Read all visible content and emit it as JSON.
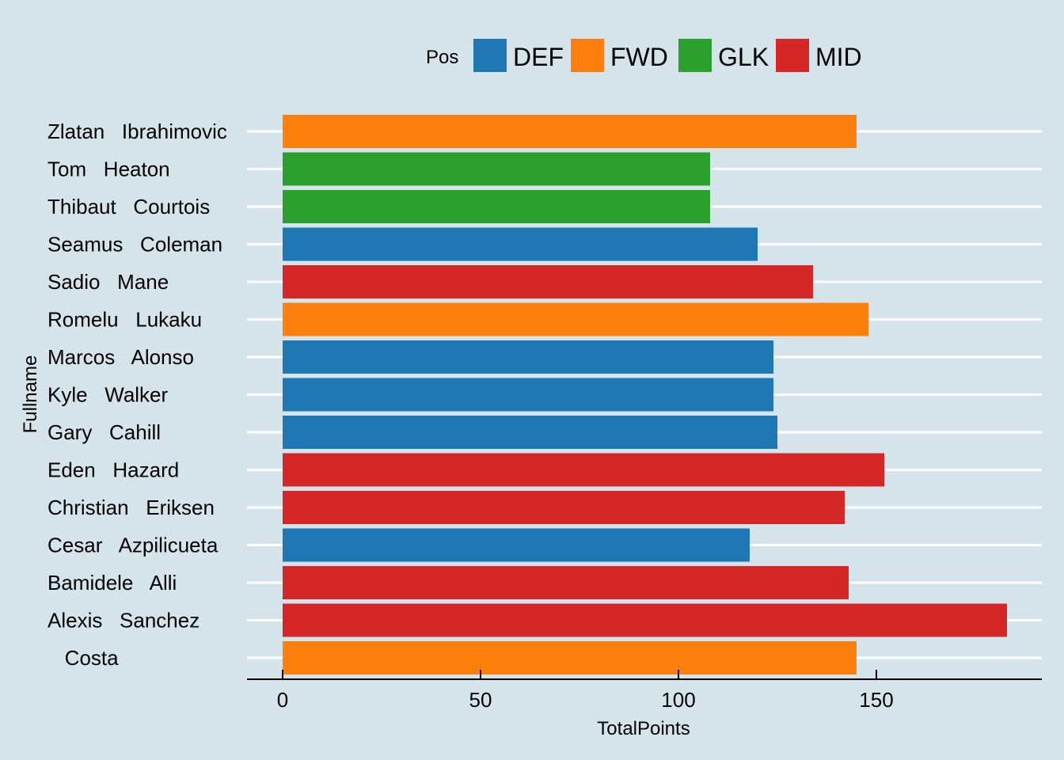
{
  "chart_data": {
    "type": "bar",
    "orientation": "horizontal",
    "xlabel": "TotalPoints",
    "ylabel": "Fullname",
    "xlim": [
      0,
      190
    ],
    "xticks": [
      0,
      50,
      100,
      150
    ],
    "grid": "horizontal major lines",
    "legend": {
      "title": "Pos",
      "placement": "top",
      "entries": [
        {
          "name": "DEF",
          "color": "#1f77b4"
        },
        {
          "name": "FWD",
          "color": "#ff7f0e"
        },
        {
          "name": "GLK",
          "color": "#2ca02c"
        },
        {
          "name": "MID",
          "color": "#d62728"
        }
      ]
    },
    "bars": [
      {
        "label": "Zlatan   Ibrahimovic",
        "pos": "FWD",
        "value": 145
      },
      {
        "label": "Tom   Heaton",
        "pos": "GLK",
        "value": 108
      },
      {
        "label": "Thibaut   Courtois",
        "pos": "GLK",
        "value": 108
      },
      {
        "label": "Seamus   Coleman",
        "pos": "DEF",
        "value": 120
      },
      {
        "label": "Sadio   Mane",
        "pos": "MID",
        "value": 134
      },
      {
        "label": "Romelu   Lukaku",
        "pos": "FWD",
        "value": 148
      },
      {
        "label": "Marcos   Alonso",
        "pos": "DEF",
        "value": 124
      },
      {
        "label": "Kyle   Walker",
        "pos": "DEF",
        "value": 124
      },
      {
        "label": "Gary   Cahill",
        "pos": "DEF",
        "value": 125
      },
      {
        "label": "Eden   Hazard",
        "pos": "MID",
        "value": 152
      },
      {
        "label": "Christian   Eriksen",
        "pos": "MID",
        "value": 142
      },
      {
        "label": "Cesar   Azpilicueta",
        "pos": "DEF",
        "value": 118
      },
      {
        "label": "Bamidele   Alli",
        "pos": "MID",
        "value": 143
      },
      {
        "label": "Alexis   Sanchez",
        "pos": "MID",
        "value": 183
      },
      {
        "label": "   Costa",
        "pos": "FWD",
        "value": 145
      }
    ]
  }
}
